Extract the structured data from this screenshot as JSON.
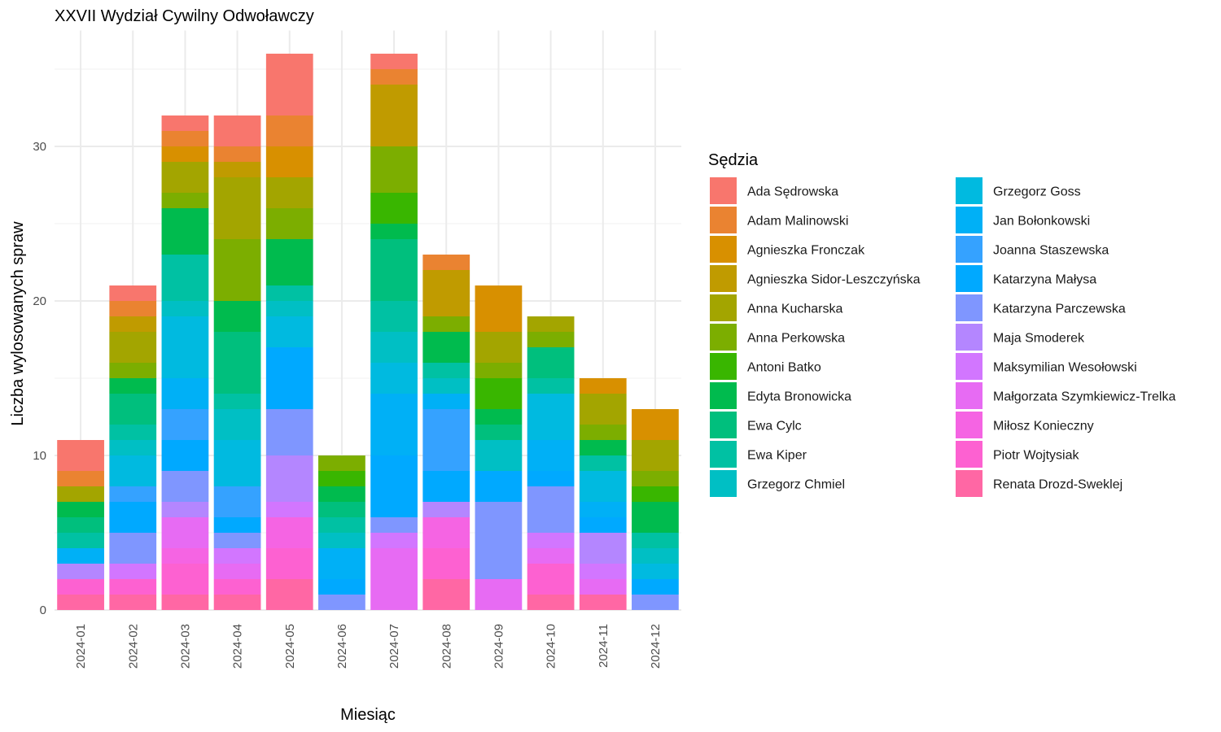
{
  "chart_data": {
    "type": "bar",
    "stacked": true,
    "title": "XXVII Wydział Cywilny Odwoławczy",
    "xlabel": "Miesiąc",
    "ylabel": "Liczba wylosowanych spraw",
    "ylim": [
      0,
      37.5
    ],
    "yticks": [
      0,
      10,
      20,
      30
    ],
    "grid": true,
    "legend_title": "Sędzia",
    "legend_position": "right",
    "categories": [
      "2024-01",
      "2024-02",
      "2024-03",
      "2024-04",
      "2024-05",
      "2024-06",
      "2024-07",
      "2024-08",
      "2024-09",
      "2024-10",
      "2024-11",
      "2024-12"
    ],
    "series": [
      {
        "name": "Ada Sędrowska",
        "color": "#F8766D",
        "values": [
          2,
          1,
          1,
          2,
          4,
          0,
          1,
          0,
          0,
          0,
          0,
          0
        ]
      },
      {
        "name": "Adam Malinowski",
        "color": "#EA8331",
        "values": [
          1,
          1,
          1,
          1,
          2,
          0,
          1,
          1,
          0,
          0,
          0,
          0
        ]
      },
      {
        "name": "Agnieszka Fronczak",
        "color": "#D89000",
        "values": [
          0,
          0,
          1,
          0,
          2,
          0,
          0,
          0,
          3,
          0,
          1,
          2
        ]
      },
      {
        "name": "Agnieszka Sidor-Leszczyńska",
        "color": "#C09B00",
        "values": [
          0,
          1,
          0,
          1,
          0,
          0,
          4,
          3,
          0,
          0,
          0,
          0
        ]
      },
      {
        "name": "Anna Kucharska",
        "color": "#A3A500",
        "values": [
          1,
          2,
          2,
          4,
          2,
          0,
          0,
          0,
          2,
          1,
          2,
          2
        ]
      },
      {
        "name": "Anna Perkowska",
        "color": "#7CAE00",
        "values": [
          0,
          1,
          1,
          4,
          2,
          1,
          3,
          1,
          1,
          1,
          1,
          1
        ]
      },
      {
        "name": "Antoni Batko",
        "color": "#39B600",
        "values": [
          0,
          0,
          0,
          0,
          0,
          1,
          2,
          0,
          2,
          0,
          0,
          1
        ]
      },
      {
        "name": "Edyta Bronowicka",
        "color": "#00BB4E",
        "values": [
          1,
          1,
          3,
          2,
          3,
          1,
          1,
          2,
          1,
          0,
          1,
          2
        ]
      },
      {
        "name": "Ewa Cylc",
        "color": "#00BF7D",
        "values": [
          1,
          2,
          0,
          4,
          0,
          1,
          4,
          0,
          1,
          2,
          0,
          0
        ]
      },
      {
        "name": "Ewa Kiper",
        "color": "#00C1A3",
        "values": [
          1,
          1,
          3,
          1,
          1,
          1,
          2,
          1,
          0,
          1,
          1,
          1
        ]
      },
      {
        "name": "Grzegorz Chmiel",
        "color": "#00BFC4",
        "values": [
          0,
          1,
          1,
          2,
          1,
          1,
          2,
          1,
          2,
          0,
          0,
          1
        ]
      },
      {
        "name": "Grzegorz Goss",
        "color": "#00BAE0",
        "values": [
          0,
          2,
          4,
          3,
          2,
          0,
          2,
          0,
          0,
          3,
          2,
          1
        ]
      },
      {
        "name": "Jan Bołonkowski",
        "color": "#00B0F6",
        "values": [
          1,
          0,
          2,
          0,
          0,
          2,
          4,
          1,
          0,
          2,
          1,
          0
        ]
      },
      {
        "name": "Joanna Staszewska",
        "color": "#35A2FF",
        "values": [
          0,
          1,
          2,
          2,
          0,
          0,
          0,
          4,
          0,
          0,
          0,
          0
        ]
      },
      {
        "name": "Katarzyna Małysa",
        "color": "#00A9FF",
        "values": [
          0,
          2,
          2,
          1,
          4,
          1,
          4,
          2,
          2,
          1,
          1,
          1
        ]
      },
      {
        "name": "Katarzyna Parczewska",
        "color": "#7F96FF",
        "values": [
          0,
          2,
          2,
          1,
          3,
          1,
          1,
          0,
          5,
          3,
          0,
          1
        ]
      },
      {
        "name": "Maja Smoderek",
        "color": "#B486FF",
        "values": [
          1,
          0,
          1,
          0,
          3,
          0,
          0,
          1,
          0,
          0,
          2,
          0
        ]
      },
      {
        "name": "Maksymilian Wesołowski",
        "color": "#D276FF",
        "values": [
          0,
          1,
          0,
          1,
          1,
          0,
          1,
          0,
          0,
          1,
          1,
          0
        ]
      },
      {
        "name": "Małgorzata Szymkiewicz-Trelka",
        "color": "#E76BF3",
        "values": [
          0,
          0,
          2,
          1,
          0,
          0,
          4,
          0,
          2,
          1,
          1,
          0
        ]
      },
      {
        "name": "Miłosz Konieczny",
        "color": "#F564E3",
        "values": [
          0,
          0,
          1,
          0,
          2,
          0,
          0,
          2,
          0,
          0,
          0,
          0
        ]
      },
      {
        "name": "Piotr Wojtysiak",
        "color": "#FD61D1",
        "values": [
          1,
          1,
          2,
          1,
          2,
          0,
          0,
          2,
          0,
          2,
          0,
          0
        ]
      },
      {
        "name": "Renata Drozd-Sweklej",
        "color": "#FF67A4",
        "values": [
          1,
          1,
          1,
          1,
          2,
          0,
          0,
          2,
          0,
          1,
          1,
          0
        ]
      }
    ]
  }
}
